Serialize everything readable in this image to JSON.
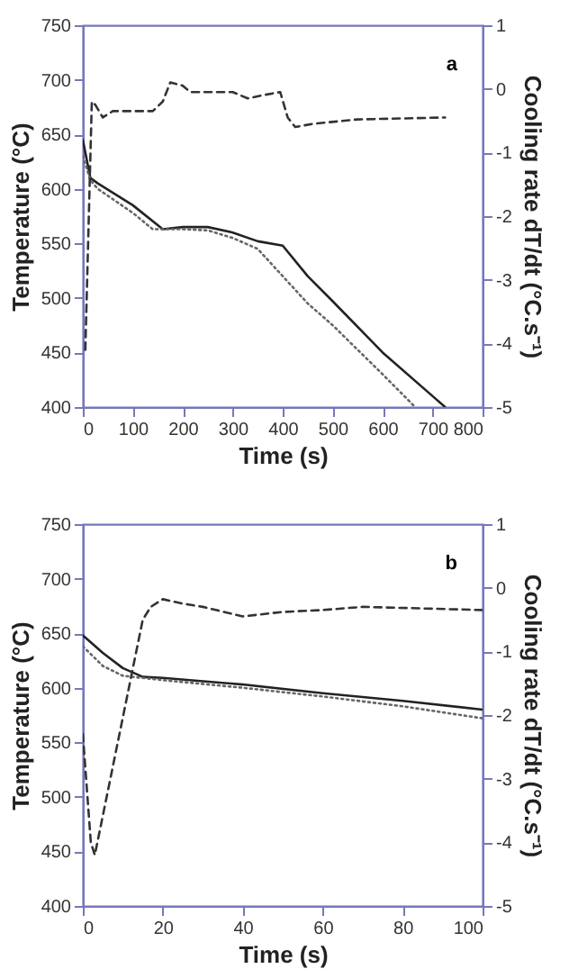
{
  "chart_data": [
    {
      "type": "line",
      "xlabel": "Time (s)",
      "ylabel": "Temperature (°C)",
      "y2label": "Cooling rate dT/dt (°C.s⁻¹)",
      "annotations": [
        "a"
      ],
      "xlim": [
        0,
        800
      ],
      "xticks": [
        0,
        100,
        200,
        300,
        400,
        500,
        600,
        700,
        800
      ],
      "ylim": [
        400,
        750
      ],
      "yticks": [
        400,
        450,
        500,
        550,
        600,
        650,
        700,
        750
      ],
      "y2lim": [
        -5,
        1
      ],
      "y2ticks": [
        -5,
        -4,
        -3,
        -2,
        -1,
        0,
        1
      ],
      "grid": false,
      "series": [
        {
          "color": "#222222",
          "line_style": "solid",
          "x": [
            0,
            15,
            30,
            100,
            160,
            200,
            250,
            300,
            350,
            400,
            450,
            500,
            600,
            700,
            725
          ],
          "values": [
            645,
            610,
            605,
            585,
            563,
            565,
            565,
            560,
            552,
            548,
            520,
            497,
            450,
            410,
            400
          ]
        },
        {
          "color": "#666666",
          "line_style": "dotted",
          "x": [
            0,
            15,
            30,
            100,
            140,
            200,
            250,
            300,
            350,
            400,
            450,
            500,
            600,
            665
          ],
          "values": [
            630,
            608,
            600,
            578,
            563,
            563,
            562,
            555,
            545,
            520,
            495,
            475,
            430,
            400
          ]
        },
        {
          "color": "#333333",
          "line_style": "dashed",
          "axis": "y2",
          "x": [
            5,
            18,
            25,
            40,
            60,
            140,
            160,
            175,
            200,
            215,
            300,
            330,
            360,
            395,
            410,
            425,
            460,
            550,
            725
          ],
          "values": [
            -4.1,
            -0.2,
            -0.25,
            -0.45,
            -0.35,
            -0.35,
            -0.2,
            0.1,
            0.05,
            -0.05,
            -0.05,
            -0.15,
            -0.1,
            -0.05,
            -0.45,
            -0.6,
            -0.55,
            -0.48,
            -0.45
          ]
        }
      ]
    },
    {
      "type": "line",
      "xlabel": "Time (s)",
      "ylabel": "Temperature (°C)",
      "y2label": "Cooling rate dT/dt (°C.s⁻¹)",
      "annotations": [
        "b"
      ],
      "xlim": [
        0,
        100
      ],
      "xticks": [
        0,
        20,
        40,
        60,
        80,
        100
      ],
      "ylim": [
        400,
        750
      ],
      "yticks": [
        400,
        450,
        500,
        550,
        600,
        650,
        700,
        750
      ],
      "y2lim": [
        -5,
        1
      ],
      "y2ticks": [
        -5,
        -4,
        -3,
        -2,
        -1,
        0,
        1
      ],
      "grid": false,
      "series": [
        {
          "color": "#222222",
          "line_style": "solid",
          "x": [
            0,
            5,
            10,
            15,
            20,
            40,
            60,
            80,
            100
          ],
          "values": [
            648,
            632,
            618,
            610,
            609,
            603,
            595,
            588,
            580
          ]
        },
        {
          "color": "#666666",
          "line_style": "dotted",
          "x": [
            0,
            5,
            10,
            20,
            40,
            60,
            80,
            100
          ],
          "values": [
            638,
            620,
            611,
            607,
            600,
            592,
            583,
            572
          ]
        },
        {
          "color": "#333333",
          "line_style": "dashed",
          "axis": "y2",
          "x": [
            0,
            2,
            3,
            15,
            17,
            20,
            25,
            30,
            40,
            50,
            60,
            70,
            100
          ],
          "values": [
            -2.3,
            -4.0,
            -4.2,
            -0.5,
            -0.3,
            -0.18,
            -0.25,
            -0.3,
            -0.45,
            -0.38,
            -0.35,
            -0.3,
            -0.35
          ]
        }
      ]
    }
  ]
}
